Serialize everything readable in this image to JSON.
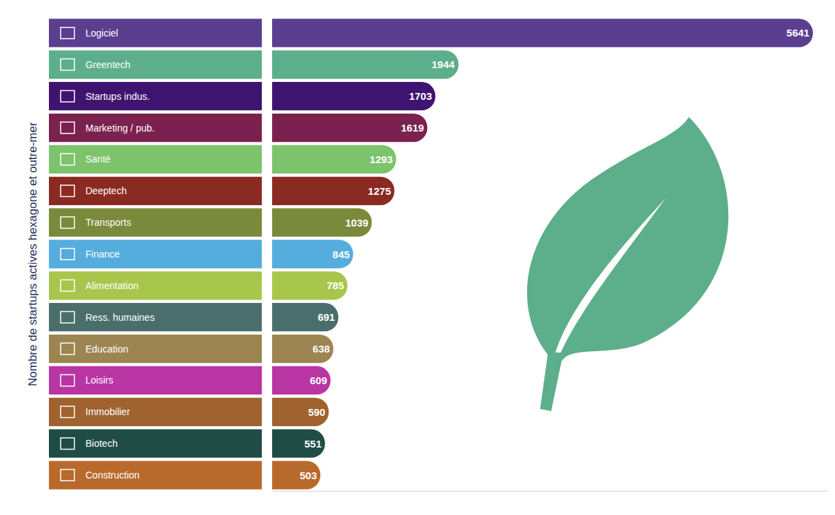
{
  "chart_data": {
    "type": "bar",
    "orientation": "horizontal",
    "ylabel": "Nombre de startups actives hexagone et outre-mer",
    "categories": [
      "Logiciel",
      "Greentech",
      "Startups indus.",
      "Marketing / pub.",
      "Santé",
      "Deeptech",
      "Transports",
      "Finance",
      "Alimentation",
      "Ress. humaines",
      "Education",
      "Loisirs",
      "Immobilier",
      "Biotech",
      "Construction"
    ],
    "values": [
      5641,
      1944,
      1703,
      1619,
      1293,
      1275,
      1039,
      845,
      785,
      691,
      638,
      609,
      590,
      551,
      503
    ],
    "colors": [
      "#5B3E8F",
      "#5DAE8B",
      "#3F1470",
      "#7B2150",
      "#7DC36B",
      "#8B2A22",
      "#7A8A3A",
      "#55ADDD",
      "#A8C64C",
      "#4A6E6B",
      "#9C8550",
      "#B935A4",
      "#A0622E",
      "#1F4D45",
      "#B86A2C"
    ],
    "xlim": [
      0,
      5800
    ],
    "grid": false,
    "data_labels": true,
    "tick_labels": false
  }
}
